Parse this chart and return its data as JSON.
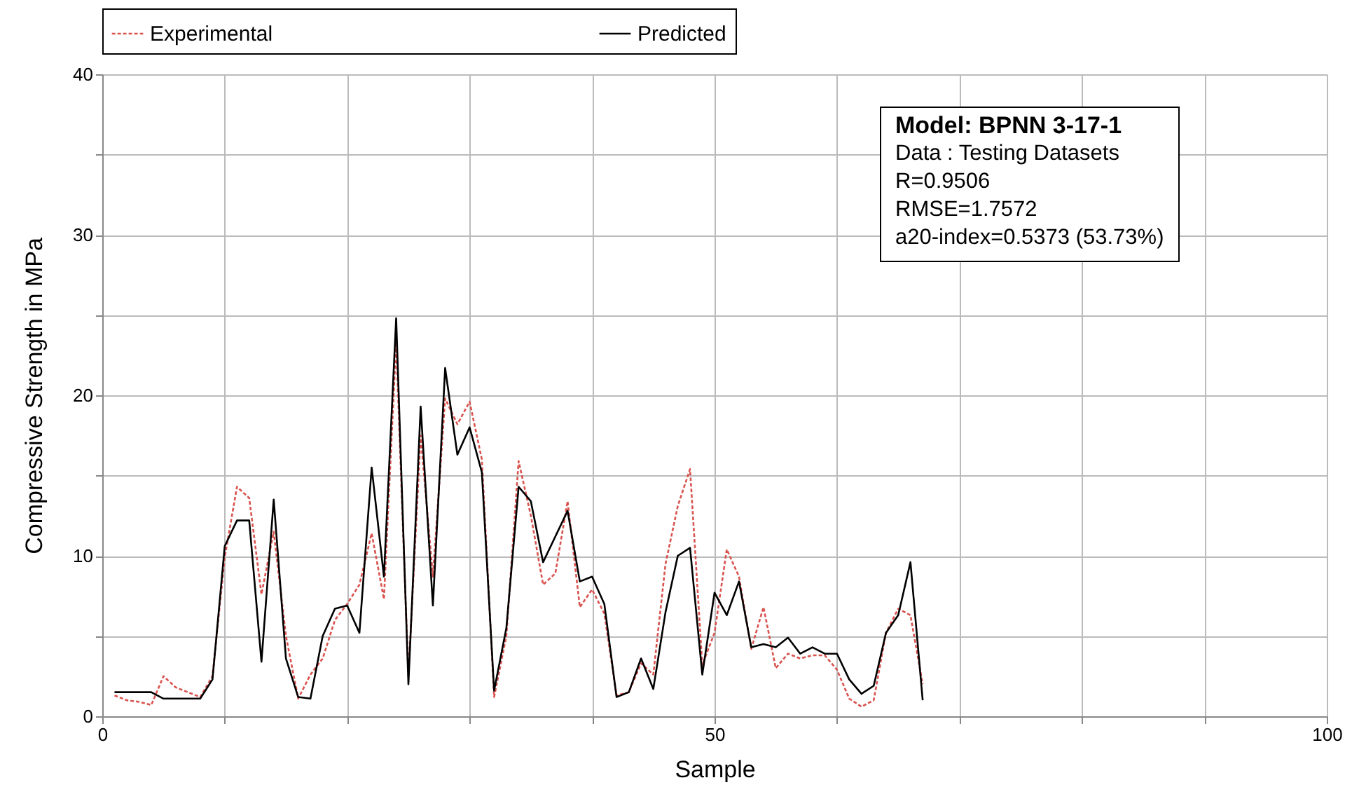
{
  "chart_data": {
    "type": "line",
    "xlabel": "Sample",
    "ylabel": "Compressive Strength in MPa",
    "annotations": [
      "Model: BPNN 3-17-1",
      "Data : Testing Datasets",
      "R=0.9506",
      "RMSE=1.7572",
      "a20-index=0.5373  (53.73%)"
    ],
    "x": [
      1,
      2,
      3,
      4,
      5,
      6,
      7,
      8,
      9,
      10,
      11,
      12,
      13,
      14,
      15,
      16,
      17,
      18,
      19,
      20,
      21,
      22,
      23,
      24,
      25,
      26,
      27,
      28,
      29,
      30,
      31,
      32,
      33,
      34,
      35,
      36,
      37,
      38,
      39,
      40,
      41,
      42,
      43,
      44,
      45,
      46,
      47,
      48,
      49,
      50,
      51,
      52,
      53,
      54,
      55,
      56,
      57,
      58,
      59,
      60,
      61,
      62,
      63,
      64,
      65,
      66,
      67
    ],
    "series": [
      {
        "name": "Experimental",
        "color": "#d9534f",
        "line_style": "dashed",
        "values": [
          1.3,
          1.0,
          0.9,
          0.7,
          2.5,
          1.8,
          1.5,
          1.2,
          2.5,
          9.9,
          14.3,
          13.6,
          7.6,
          11.5,
          5.0,
          1.1,
          2.6,
          3.6,
          6.0,
          7.0,
          8.2,
          11.4,
          7.3,
          23.3,
          2.5,
          17.5,
          8.7,
          19.8,
          18.2,
          19.6,
          16.0,
          1.2,
          5.0,
          15.9,
          12.5,
          8.2,
          8.9,
          13.4,
          6.8,
          7.9,
          6.4,
          1.3,
          1.5,
          3.3,
          2.6,
          9.5,
          13.1,
          15.4,
          3.2,
          5.2,
          10.4,
          8.7,
          4.2,
          6.8,
          3.0,
          3.9,
          3.6,
          3.8,
          3.8,
          2.9,
          1.1,
          0.6,
          1.0,
          5.2,
          6.7,
          6.3,
          2.0
        ]
      },
      {
        "name": "Predicted",
        "color": "#000000",
        "line_style": "solid",
        "values": [
          1.5,
          1.5,
          1.5,
          1.5,
          1.1,
          1.1,
          1.1,
          1.1,
          2.3,
          10.6,
          12.2,
          12.2,
          3.4,
          13.5,
          3.6,
          1.2,
          1.1,
          5.0,
          6.7,
          6.9,
          5.2,
          15.5,
          8.7,
          24.8,
          2.0,
          19.3,
          6.9,
          21.7,
          16.3,
          18.0,
          15.2,
          1.6,
          5.5,
          14.3,
          13.4,
          9.6,
          11.2,
          12.8,
          8.4,
          8.7,
          7.0,
          1.2,
          1.5,
          3.6,
          1.7,
          6.5,
          10.0,
          10.5,
          2.6,
          7.7,
          6.3,
          8.4,
          4.3,
          4.5,
          4.3,
          4.9,
          3.9,
          4.3,
          3.9,
          3.9,
          2.3,
          1.4,
          1.9,
          5.2,
          6.3,
          9.6,
          1.0
        ]
      }
    ],
    "xlim": [
      0,
      100
    ],
    "xticks": [
      0,
      {
        "value": 10,
        "label": null
      },
      {
        "value": 20,
        "label": null
      },
      {
        "value": 30,
        "label": null
      },
      {
        "value": 40,
        "label": null
      },
      50,
      {
        "value": 60,
        "label": null
      },
      {
        "value": 70,
        "label": null
      },
      {
        "value": 80,
        "label": null
      },
      {
        "value": 90,
        "label": null
      },
      100
    ],
    "ylim": [
      0,
      40
    ],
    "yticks": [
      0,
      {
        "value": 5,
        "label": null
      },
      10,
      {
        "value": 15,
        "label": null
      },
      20,
      {
        "value": 25,
        "label": null
      },
      30,
      {
        "value": 35,
        "label": null
      },
      40
    ],
    "grid": true,
    "legend": "top",
    "marker": "none"
  }
}
